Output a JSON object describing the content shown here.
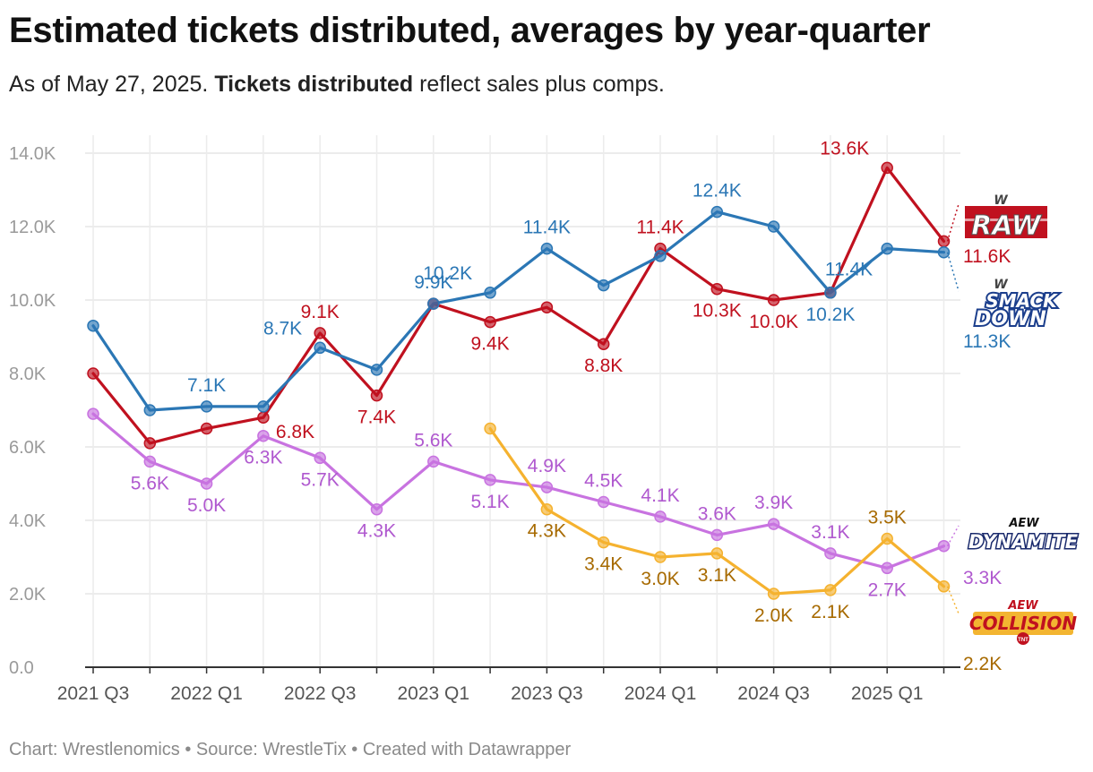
{
  "title": "Estimated tickets distributed, averages by year-quarter",
  "subtitle": {
    "prefix": "As of May 27, 2025.",
    "bold": "Tickets distributed",
    "suffix": "reflect sales plus comps."
  },
  "footer": "Chart: Wrestlenomics • Source: WrestleTix • Created with Datawrapper",
  "chart_data": {
    "type": "line",
    "title": "Estimated tickets distributed, averages by year-quarter",
    "x": [
      "2021 Q3",
      "2021 Q4",
      "2022 Q1",
      "2022 Q2",
      "2022 Q3",
      "2022 Q4",
      "2023 Q1",
      "2023 Q2",
      "2023 Q3",
      "2023 Q4",
      "2024 Q1",
      "2024 Q2",
      "2024 Q3",
      "2024 Q4",
      "2025 Q1",
      "2025 Q2"
    ],
    "x_tick_labels": [
      "2021 Q3",
      "2022 Q1",
      "2022 Q3",
      "2023 Q1",
      "2023 Q3",
      "2024 Q1",
      "2024 Q3",
      "2025 Q1"
    ],
    "y_tick_labels": [
      "0.0",
      "2.0K",
      "4.0K",
      "6.0K",
      "8.0K",
      "10.0K",
      "12.0K",
      "14.0K"
    ],
    "ylim": [
      0,
      14000
    ],
    "grid": true,
    "legend": "logos at right end of lines",
    "series": [
      {
        "name": "RAW",
        "color": "#c0111f",
        "label_color": "#c0111f",
        "values": [
          8000,
          6100,
          6500,
          6800,
          9100,
          7400,
          9900,
          9400,
          9800,
          8800,
          11400,
          10300,
          10000,
          10200,
          13600,
          11600
        ]
      },
      {
        "name": "SMACK DOWN",
        "color": "#2b77b5",
        "label_color": "#2b77b5",
        "values": [
          9300,
          7000,
          7100,
          7100,
          8700,
          8100,
          9900,
          10200,
          11400,
          10400,
          11200,
          12400,
          12000,
          10200,
          11400,
          11300
        ]
      },
      {
        "name": "DYNAMITE",
        "color": "#c873e0",
        "label_color": "#b059cf",
        "values": [
          6900,
          5600,
          5000,
          6300,
          5700,
          4300,
          5600,
          5100,
          4900,
          4500,
          4100,
          3600,
          3900,
          3100,
          2700,
          3300
        ]
      },
      {
        "name": "COLLISION",
        "color": "#f5b22f",
        "label_color": "#a76a00",
        "values": [
          null,
          null,
          null,
          null,
          null,
          null,
          null,
          6500,
          4300,
          3400,
          3000,
          3100,
          2000,
          2100,
          3500,
          2200
        ]
      }
    ],
    "data_labels": [
      {
        "series": 0,
        "index": 4,
        "text": "9.1K",
        "pos": "above"
      },
      {
        "series": 0,
        "index": 3,
        "text": "6.8K",
        "pos": "below-right"
      },
      {
        "series": 0,
        "index": 5,
        "text": "7.4K",
        "pos": "below"
      },
      {
        "series": 0,
        "index": 7,
        "text": "9.4K",
        "pos": "below"
      },
      {
        "series": 0,
        "index": 9,
        "text": "8.8K",
        "pos": "below"
      },
      {
        "series": 0,
        "index": 10,
        "text": "11.4K",
        "pos": "above"
      },
      {
        "series": 0,
        "index": 11,
        "text": "10.3K",
        "pos": "below"
      },
      {
        "series": 0,
        "index": 12,
        "text": "10.0K",
        "pos": "below"
      },
      {
        "series": 0,
        "index": 14,
        "text": "13.6K",
        "pos": "above-left"
      },
      {
        "series": 0,
        "index": 15,
        "text": "11.6K",
        "pos": "end"
      },
      {
        "series": 1,
        "index": 2,
        "text": "7.1K",
        "pos": "above"
      },
      {
        "series": 1,
        "index": 4,
        "text": "8.7K",
        "pos": "above-left"
      },
      {
        "series": 1,
        "index": 6,
        "text": "9.9K",
        "pos": "above"
      },
      {
        "series": 1,
        "index": 7,
        "text": "10.2K",
        "pos": "above-left"
      },
      {
        "series": 1,
        "index": 8,
        "text": "11.4K",
        "pos": "above"
      },
      {
        "series": 1,
        "index": 11,
        "text": "12.4K",
        "pos": "above"
      },
      {
        "series": 1,
        "index": 13,
        "text": "10.2K",
        "pos": "below"
      },
      {
        "series": 1,
        "index": 14,
        "text": "11.4K",
        "pos": "below-left"
      },
      {
        "series": 1,
        "index": 15,
        "text": "11.3K",
        "pos": "end"
      },
      {
        "series": 2,
        "index": 1,
        "text": "5.6K",
        "pos": "below"
      },
      {
        "series": 2,
        "index": 2,
        "text": "5.0K",
        "pos": "below"
      },
      {
        "series": 2,
        "index": 3,
        "text": "6.3K",
        "pos": "below"
      },
      {
        "series": 2,
        "index": 4,
        "text": "5.7K",
        "pos": "below"
      },
      {
        "series": 2,
        "index": 5,
        "text": "4.3K",
        "pos": "below"
      },
      {
        "series": 2,
        "index": 6,
        "text": "5.6K",
        "pos": "above"
      },
      {
        "series": 2,
        "index": 7,
        "text": "5.1K",
        "pos": "below"
      },
      {
        "series": 2,
        "index": 8,
        "text": "4.9K",
        "pos": "above"
      },
      {
        "series": 2,
        "index": 9,
        "text": "4.5K",
        "pos": "above"
      },
      {
        "series": 2,
        "index": 10,
        "text": "4.1K",
        "pos": "above"
      },
      {
        "series": 2,
        "index": 11,
        "text": "3.6K",
        "pos": "above"
      },
      {
        "series": 2,
        "index": 12,
        "text": "3.9K",
        "pos": "above"
      },
      {
        "series": 2,
        "index": 13,
        "text": "3.1K",
        "pos": "above"
      },
      {
        "series": 2,
        "index": 14,
        "text": "2.7K",
        "pos": "below"
      },
      {
        "series": 2,
        "index": 15,
        "text": "3.3K",
        "pos": "end"
      },
      {
        "series": 3,
        "index": 8,
        "text": "4.3K",
        "pos": "below"
      },
      {
        "series": 3,
        "index": 9,
        "text": "3.4K",
        "pos": "below"
      },
      {
        "series": 3,
        "index": 10,
        "text": "3.0K",
        "pos": "below"
      },
      {
        "series": 3,
        "index": 11,
        "text": "3.1K",
        "pos": "below"
      },
      {
        "series": 3,
        "index": 12,
        "text": "2.0K",
        "pos": "below"
      },
      {
        "series": 3,
        "index": 13,
        "text": "2.1K",
        "pos": "below"
      },
      {
        "series": 3,
        "index": 14,
        "text": "3.5K",
        "pos": "above"
      },
      {
        "series": 3,
        "index": 15,
        "text": "2.2K",
        "pos": "end"
      }
    ]
  },
  "logos": [
    {
      "series": 0,
      "name": "raw-logo",
      "text": "RAW",
      "colors": {
        "bg": "#c0111f",
        "fg": "#ffffff",
        "mark": "#444444"
      }
    },
    {
      "series": 1,
      "name": "smackdown-logo",
      "text_top": "SMACK",
      "text_bottom": "DOWN",
      "colors": {
        "bg": "#1b3e8c",
        "fg": "#ffffff",
        "mark": "#444444"
      }
    },
    {
      "series": 2,
      "name": "dynamite-logo",
      "text_top": "AEW",
      "text_bottom": "DYNAMITE",
      "colors": {
        "bg": "#ffffff",
        "fg": "#1a2a6c",
        "mark": "#111111"
      }
    },
    {
      "series": 3,
      "name": "collision-logo",
      "text_top": "AEW",
      "text_bottom": "COLLISION",
      "badge": "TNT",
      "colors": {
        "bg": "#f3b531",
        "fg": "#c0111f",
        "mark": "#c0111f"
      }
    }
  ]
}
